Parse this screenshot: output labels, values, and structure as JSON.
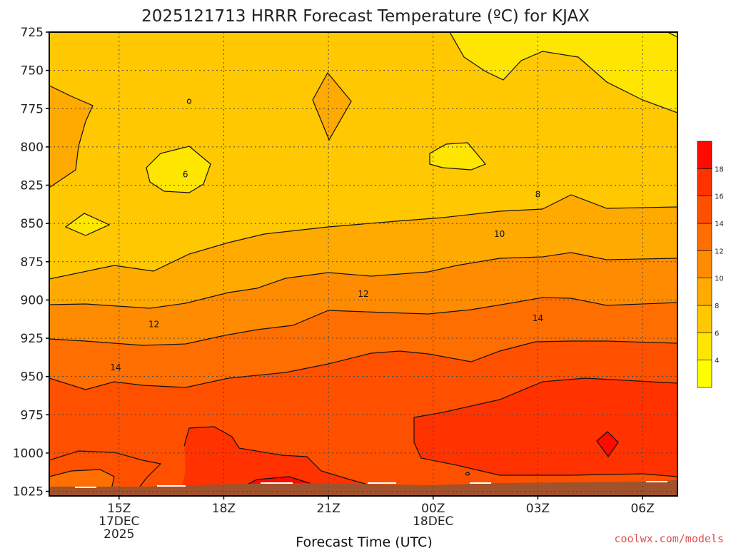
{
  "page": {
    "title": "2025121713 HRRR Forecast Temperature (ºC) for KJAX",
    "credit": "coolwx.com/models"
  },
  "chart_data": {
    "type": "contour",
    "title": "2025121713 HRRR Forecast Temperature (ºC) for KJAX",
    "xlabel": "Forecast Time (UTC)",
    "ylabel": "",
    "x_range_hours": [
      13,
      31
    ],
    "y_range_hpa": [
      725,
      1028
    ],
    "grid": true,
    "y_ticks": [
      725,
      750,
      775,
      800,
      825,
      850,
      875,
      900,
      925,
      950,
      975,
      1000,
      1025
    ],
    "x_ticks": [
      {
        "hour": 15,
        "lines": [
          "15Z",
          "17DEC",
          "2025"
        ]
      },
      {
        "hour": 18,
        "lines": [
          "18Z"
        ]
      },
      {
        "hour": 21,
        "lines": [
          "21Z"
        ]
      },
      {
        "hour": 24,
        "lines": [
          "00Z",
          "18DEC"
        ]
      },
      {
        "hour": 27,
        "lines": [
          "03Z"
        ]
      },
      {
        "hour": 30,
        "lines": [
          "06Z"
        ]
      }
    ],
    "colorbar": {
      "levels": [
        2,
        4,
        6,
        8,
        10,
        12,
        14,
        16,
        18,
        20
      ],
      "colors": [
        "#ffff00",
        "#ffe600",
        "#ffc800",
        "#ffaa00",
        "#ff8c00",
        "#ff6e00",
        "#ff5000",
        "#ff3200",
        "#ff0a00"
      ],
      "tick_labels": [
        "4",
        "6",
        "8",
        "10",
        "12",
        "14",
        "16",
        "18"
      ]
    },
    "contour_labels": [
      {
        "text": "6",
        "hour": 16.9,
        "p": 818
      },
      {
        "text": "8",
        "hour": 27.0,
        "p": 831
      },
      {
        "text": "10",
        "hour": 25.9,
        "p": 857
      },
      {
        "text": "12",
        "hour": 22.0,
        "p": 896
      },
      {
        "text": "12",
        "hour": 16.0,
        "p": 916
      },
      {
        "text": "14",
        "hour": 27.0,
        "p": 912
      },
      {
        "text": "14",
        "hour": 14.9,
        "p": 944
      }
    ]
  }
}
